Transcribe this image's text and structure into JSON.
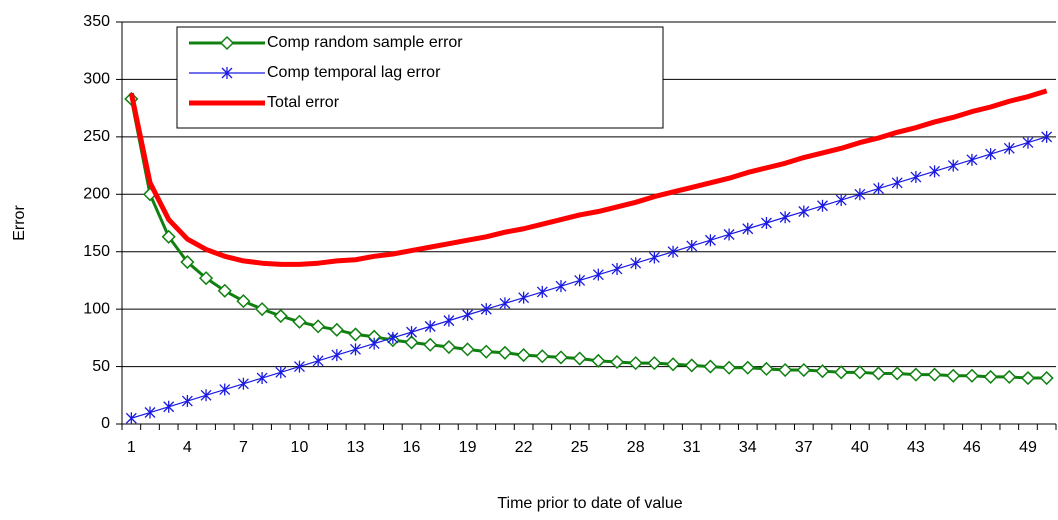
{
  "chart_data": {
    "type": "line",
    "x_label": "Time prior to date of value",
    "y_label": "Error",
    "categories": [
      1,
      null,
      null,
      4,
      null,
      null,
      7,
      null,
      null,
      10,
      null,
      null,
      13,
      null,
      null,
      16,
      null,
      null,
      19,
      null,
      null,
      22,
      null,
      null,
      25,
      null,
      null,
      28,
      null,
      null,
      31,
      null,
      null,
      34,
      null,
      null,
      37,
      null,
      null,
      40,
      null,
      null,
      43,
      null,
      null,
      46,
      null,
      null,
      49,
      null
    ],
    "series": [
      {
        "name": "Comp random sample error",
        "color": "#108010",
        "marker": "diamond",
        "line_width": 3,
        "values": [
          283,
          200,
          163,
          141,
          127,
          116,
          107,
          100,
          94,
          89,
          85,
          82,
          78,
          76,
          73,
          71,
          69,
          67,
          65,
          63,
          62,
          60,
          59,
          58,
          57,
          55,
          54,
          53,
          53,
          52,
          51,
          50,
          49,
          49,
          48,
          47,
          47,
          46,
          45,
          45,
          44,
          44,
          43,
          43,
          42,
          42,
          41,
          41,
          40,
          40
        ]
      },
      {
        "name": "Comp temporal lag error",
        "color": "#1a1ae0",
        "marker": "asterisk",
        "line_width": 1.2,
        "values": [
          5,
          10,
          15,
          20,
          25,
          30,
          35,
          40,
          45,
          50,
          55,
          60,
          65,
          70,
          75,
          80,
          85,
          90,
          95,
          100,
          105,
          110,
          115,
          120,
          125,
          130,
          135,
          140,
          145,
          150,
          155,
          160,
          165,
          170,
          175,
          180,
          185,
          190,
          195,
          200,
          205,
          210,
          215,
          220,
          225,
          230,
          235,
          240,
          245,
          250
        ]
      },
      {
        "name": "Total error",
        "color": "#ff0000",
        "marker": "none",
        "line_width": 5,
        "values": [
          288,
          210,
          178,
          161,
          152,
          146,
          142,
          140,
          139,
          139,
          140,
          142,
          143,
          146,
          148,
          151,
          154,
          157,
          160,
          163,
          167,
          170,
          174,
          178,
          182,
          185,
          189,
          193,
          198,
          202,
          206,
          210,
          214,
          219,
          223,
          227,
          232,
          236,
          240,
          245,
          249,
          254,
          258,
          263,
          267,
          272,
          276,
          281,
          285,
          290
        ]
      }
    ],
    "ylim": [
      0,
      350
    ],
    "yticks": [
      0,
      50,
      100,
      150,
      200,
      250,
      300,
      350
    ],
    "grid": true,
    "legend": "top-left"
  }
}
